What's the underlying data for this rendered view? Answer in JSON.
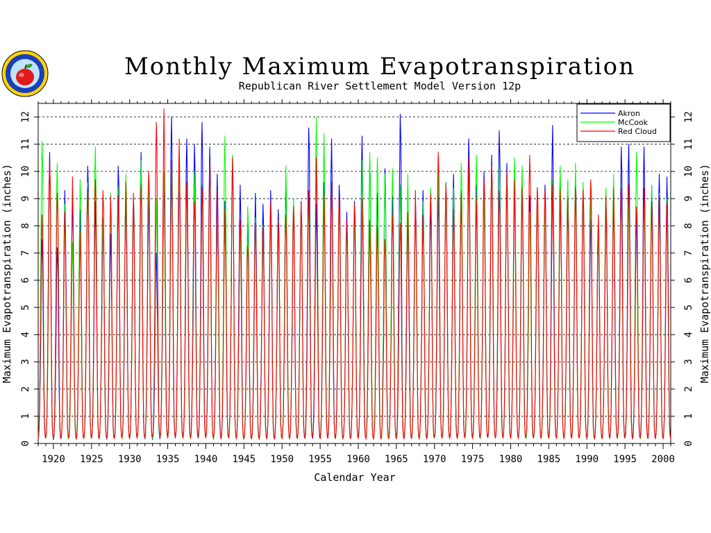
{
  "chart_data": {
    "type": "line",
    "title": "Monthly Maximum Evapotranspiration",
    "subtitle": "Republican River Settlement Model Version 12p",
    "xlabel": "Calendar Year",
    "ylabel": "Maximum Evapotranspiration (inches)",
    "ylabel_right": "Maximum Evapotranspiration (inches)",
    "xlim": [
      1918,
      2001
    ],
    "ylim": [
      0,
      12.5
    ],
    "x_ticks": [
      "1920",
      "1925",
      "1930",
      "1935",
      "1940",
      "1945",
      "1950",
      "1955",
      "1960",
      "1965",
      "1970",
      "1975",
      "1980",
      "1985",
      "1990",
      "1995",
      "2000"
    ],
    "y_ticks": [
      "0",
      "1",
      "2",
      "3",
      "4",
      "5",
      "6",
      "7",
      "8",
      "9",
      "10",
      "11",
      "12"
    ],
    "grid": "horizontal dashed",
    "legend_position": "top-right",
    "series": [
      {
        "name": "Akron",
        "color": "#0000ff",
        "annual_peaks": [
          7.5,
          10.7,
          7.2,
          9.3,
          8.9,
          8.6,
          10.2,
          8.9,
          8.2,
          7.7,
          10.2,
          9.2,
          9.0,
          10.7,
          9.0,
          7.0,
          9.4,
          12.0,
          9.9,
          11.2,
          11.0,
          11.8,
          10.9,
          9.9,
          8.9,
          10.5,
          9.5,
          8.1,
          9.2,
          8.8,
          9.3,
          8.6,
          9.6,
          8.5,
          8.9,
          11.6,
          8.8,
          9.6,
          11.2,
          9.5,
          8.5,
          8.9,
          11.3,
          10.4,
          9.2,
          10.1,
          9.1,
          12.1,
          8.2,
          8.9,
          9.3,
          8.8,
          9.1,
          9.6,
          9.9,
          9.3,
          11.2,
          9.5,
          10.0,
          10.6,
          11.5,
          10.3,
          9.7,
          9.8,
          9.1,
          9.4,
          9.5,
          11.7,
          9.5,
          9.6,
          9.8,
          9.4,
          8.2,
          8.1,
          8.9,
          9.0,
          10.9,
          11.0,
          8.4,
          10.9,
          9.5,
          9.9,
          9.8,
          8.5
        ]
      },
      {
        "name": "McCook",
        "color": "#00ff00",
        "annual_peaks": [
          11.1,
          9.5,
          10.3,
          8.8,
          7.4,
          9.7,
          9.6,
          10.9,
          8.3,
          9.2,
          9.4,
          9.9,
          9.0,
          10.4,
          9.8,
          9.0,
          10.0,
          10.5,
          10.0,
          9.6,
          10.0,
          9.5,
          9.9,
          8.0,
          11.3,
          10.6,
          8.1,
          8.7,
          8.3,
          8.0,
          8.6,
          8.2,
          10.2,
          9.0,
          8.7,
          9.1,
          12.0,
          11.4,
          9.2,
          8.4,
          7.9,
          8.8,
          10.4,
          10.7,
          10.5,
          9.9,
          10.1,
          9.5,
          9.9,
          8.6,
          8.9,
          9.4,
          10.1,
          9.6,
          9.4,
          10.3,
          10.0,
          10.6,
          9.2,
          10.0,
          10.3,
          10.0,
          10.5,
          10.2,
          8.5,
          9.3,
          8.8,
          9.7,
          10.2,
          9.7,
          10.3,
          9.6,
          9.1,
          7.7,
          9.4,
          9.9,
          9.5,
          8.9,
          10.7,
          8.8,
          9.5,
          9.2,
          9.0,
          8.3
        ]
      },
      {
        "name": "Red Cloud",
        "color": "#ff0000",
        "annual_peaks": [
          8.4,
          10.3,
          9.2,
          8.5,
          9.8,
          7.8,
          9.4,
          9.7,
          9.3,
          9.1,
          9.1,
          9.6,
          9.2,
          9.5,
          10.0,
          11.8,
          12.3,
          10.4,
          11.2,
          9.6,
          8.9,
          9.4,
          10.3,
          9.3,
          8.6,
          10.5,
          8.2,
          7.3,
          8.1,
          7.9,
          8.9,
          8.2,
          8.4,
          8.7,
          8.8,
          9.3,
          10.5,
          9.1,
          9.6,
          9.0,
          8.2,
          8.8,
          9.0,
          8.2,
          8.0,
          7.5,
          8.4,
          8.1,
          8.5,
          9.3,
          8.4,
          9.2,
          10.7,
          9.5,
          8.6,
          9.2,
          10.5,
          9.0,
          9.7,
          10.2,
          9.3,
          10.0,
          9.7,
          9.4,
          10.6,
          9.4,
          9.3,
          9.5,
          9.3,
          9.0,
          9.4,
          9.3,
          9.7,
          8.4,
          9.1,
          9.4,
          9.4,
          9.5,
          8.7,
          9.4,
          8.9,
          9.1,
          8.8,
          8.3
        ]
      }
    ]
  }
}
